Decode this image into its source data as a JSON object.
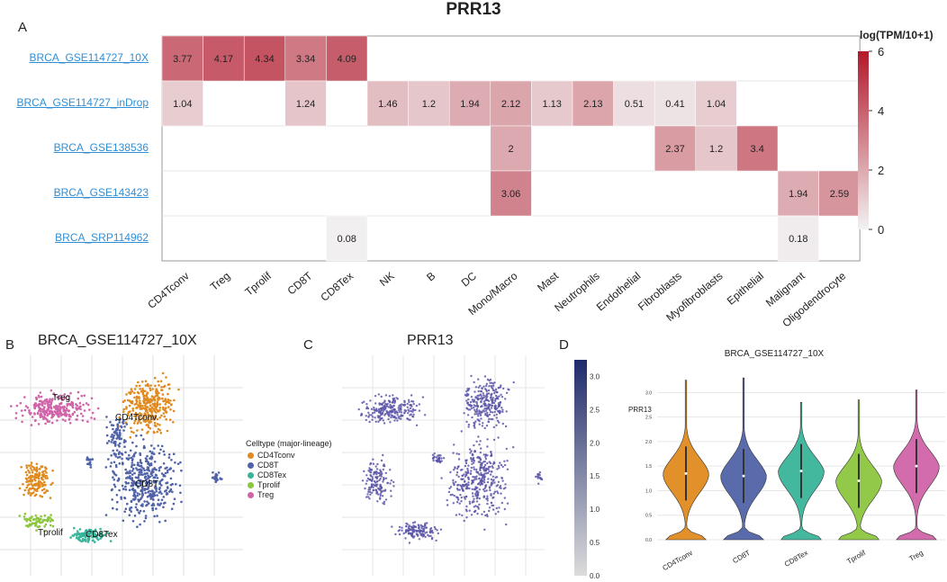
{
  "title": "PRR13",
  "panel_labels": {
    "a": "A",
    "b": "B",
    "c": "C",
    "d": "D"
  },
  "heatmap": {
    "colorbar_title": "log(TPM/10+1)",
    "colorbar_ticks": [
      "0",
      "2",
      "4",
      "6"
    ],
    "low_color": "#f2f2f2",
    "high_color": "#b2182b"
  },
  "panel_b": {
    "title": "BRCA_GSE114727_10X",
    "legend_title": "Celltype (major-lineage)",
    "legend": [
      {
        "label": "CD4Tconv",
        "color": "#e08a1f"
      },
      {
        "label": "CD8T",
        "color": "#5163a8"
      },
      {
        "label": "CD8Tex",
        "color": "#39b49a"
      },
      {
        "label": "Tprolif",
        "color": "#8cc63f"
      },
      {
        "label": "Treg",
        "color": "#d064a8"
      }
    ],
    "cluster_labels": [
      "Treg",
      "CD4Tconv",
      "CD8T",
      "Tprolif",
      "CD8Tex"
    ]
  },
  "panel_c": {
    "title": "PRR13",
    "colorbar_ticks": [
      "0.0",
      "0.5",
      "1.0",
      "1.5",
      "2.0",
      "2.5",
      "3.0"
    ],
    "point_color": "#5a55a8"
  },
  "chart_data": [
    {
      "type": "heatmap",
      "title": "PRR13",
      "colorbar_label": "log(TPM/10+1)",
      "range": [
        0,
        6
      ],
      "rows": [
        "BRCA_GSE114727_10X",
        "BRCA_GSE114727_inDrop",
        "BRCA_GSE138536",
        "BRCA_GSE143423",
        "BRCA_SRP114962"
      ],
      "columns": [
        "CD4Tconv",
        "Treg",
        "Tprolif",
        "CD8T",
        "CD8Tex",
        "NK",
        "B",
        "DC",
        "Mono/Macro",
        "Mast",
        "Neutrophils",
        "Endothelial",
        "Fibroblasts",
        "Myofibroblasts",
        "Epithelial",
        "Malignant",
        "Oligodendrocyte"
      ],
      "values": [
        [
          3.77,
          4.17,
          4.34,
          3.34,
          4.09,
          null,
          null,
          null,
          null,
          null,
          null,
          null,
          null,
          null,
          null,
          null,
          null
        ],
        [
          1.04,
          null,
          null,
          1.24,
          null,
          1.46,
          1.2,
          1.94,
          2.12,
          1.13,
          2.13,
          0.51,
          0.41,
          1.04,
          null,
          null,
          null
        ],
        [
          null,
          null,
          null,
          null,
          null,
          null,
          null,
          null,
          2,
          null,
          null,
          null,
          2.37,
          1.2,
          3.4,
          null,
          null
        ],
        [
          null,
          null,
          null,
          null,
          null,
          null,
          null,
          null,
          3.06,
          null,
          null,
          null,
          null,
          null,
          null,
          1.94,
          2.59
        ],
        [
          null,
          null,
          null,
          null,
          0.08,
          null,
          null,
          null,
          null,
          null,
          null,
          null,
          null,
          null,
          null,
          0.18,
          null
        ]
      ]
    },
    {
      "type": "violin",
      "title": "BRCA_GSE114727_10X",
      "ylabel": "PRR13",
      "categories": [
        "CD4Tconv",
        "CD8T",
        "CD8Tex",
        "Tprolif",
        "Treg"
      ],
      "colors": [
        "#e08a1f",
        "#5163a8",
        "#39b49a",
        "#8cc63f",
        "#d064a8"
      ],
      "ylim": [
        0,
        3.3
      ],
      "yticks": [
        "0.0",
        "0.5",
        "1.0",
        "1.5",
        "2.0",
        "2.5",
        "3.0"
      ],
      "max_values": [
        3.25,
        3.3,
        2.8,
        2.85,
        3.05
      ],
      "medians": [
        1.35,
        1.3,
        1.4,
        1.2,
        1.5
      ]
    }
  ]
}
